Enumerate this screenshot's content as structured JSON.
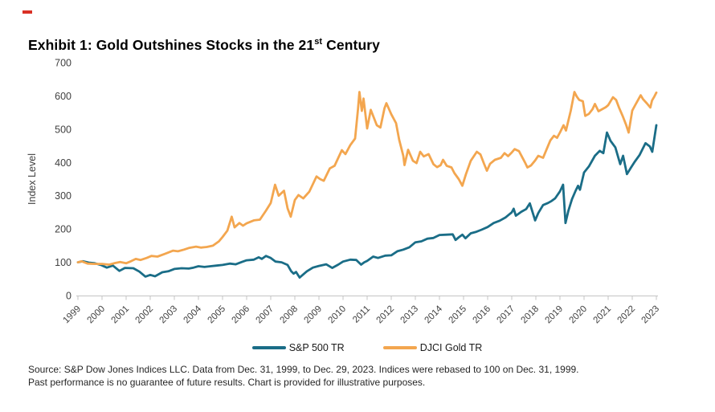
{
  "decor": {
    "red_mark_color": "#d93025"
  },
  "title": {
    "prefix": "Exhibit 1: Gold Outshines Stocks in the 21",
    "superscript": "st",
    "suffix": " Century"
  },
  "legend": {
    "items": [
      {
        "label": "S&P 500 TR",
        "color": "#1a6d87"
      },
      {
        "label": "DJCI Gold TR",
        "color": "#f3a64f"
      }
    ]
  },
  "footer": {
    "line1": "Source: S&P Dow Jones Indices LLC. Data from Dec. 31, 1999, to Dec. 29, 2023. Indices were rebased to 100 on Dec. 31, 1999.",
    "line2": "Past performance is no guarantee of future results. Chart is provided for illustrative purposes."
  },
  "chart_data": {
    "type": "line",
    "title": "Exhibit 1: Gold Outshines Stocks in the 21st Century",
    "ylabel": "Index Level",
    "xlabel": "",
    "ylim": [
      0,
      700
    ],
    "yticks": [
      0,
      100,
      200,
      300,
      400,
      500,
      600,
      700
    ],
    "xtick_labels": [
      "1999",
      "2000",
      "2001",
      "2002",
      "2003",
      "2004",
      "2005",
      "2006",
      "2007",
      "2008",
      "2009",
      "2010",
      "2011",
      "2012",
      "2013",
      "2014",
      "2015",
      "2016",
      "2017",
      "2018",
      "2019",
      "2020",
      "2021",
      "2022",
      "2023"
    ],
    "x_axis_note": "x values are calendar-decimal years; 2000.0 = Dec. 31, 1999 (tick '1999'), 2024.0 = Dec. 29, 2023 (tick '2023')",
    "x_range": [
      2000.0,
      2024.0
    ],
    "grid": false,
    "legend_position": "bottom",
    "axis_color": "#c4c4c4",
    "tick_text_color": "#404040",
    "series": [
      {
        "name": "S&P 500 TR",
        "color": "#1a6d87",
        "points": [
          [
            2000.0,
            100
          ],
          [
            2000.2,
            103
          ],
          [
            2000.45,
            99
          ],
          [
            2000.7,
            97
          ],
          [
            2000.95,
            92
          ],
          [
            2001.2,
            84
          ],
          [
            2001.45,
            90
          ],
          [
            2001.72,
            74
          ],
          [
            2001.95,
            83
          ],
          [
            2002.3,
            82
          ],
          [
            2002.55,
            72
          ],
          [
            2002.8,
            57
          ],
          [
            2003.0,
            62
          ],
          [
            2003.2,
            58
          ],
          [
            2003.5,
            70
          ],
          [
            2003.75,
            73
          ],
          [
            2004.0,
            80
          ],
          [
            2004.3,
            82
          ],
          [
            2004.6,
            81
          ],
          [
            2004.8,
            84
          ],
          [
            2005.0,
            88
          ],
          [
            2005.25,
            86
          ],
          [
            2005.5,
            88
          ],
          [
            2005.75,
            90
          ],
          [
            2006.0,
            92
          ],
          [
            2006.3,
            96
          ],
          [
            2006.55,
            94
          ],
          [
            2006.8,
            101
          ],
          [
            2007.0,
            106
          ],
          [
            2007.3,
            108
          ],
          [
            2007.5,
            115
          ],
          [
            2007.63,
            110
          ],
          [
            2007.8,
            119
          ],
          [
            2008.0,
            113
          ],
          [
            2008.2,
            102
          ],
          [
            2008.45,
            100
          ],
          [
            2008.7,
            92
          ],
          [
            2008.85,
            73
          ],
          [
            2008.95,
            66
          ],
          [
            2009.05,
            71
          ],
          [
            2009.2,
            54
          ],
          [
            2009.5,
            73
          ],
          [
            2009.75,
            84
          ],
          [
            2010.0,
            89
          ],
          [
            2010.3,
            94
          ],
          [
            2010.55,
            83
          ],
          [
            2010.8,
            93
          ],
          [
            2011.0,
            102
          ],
          [
            2011.3,
            108
          ],
          [
            2011.55,
            107
          ],
          [
            2011.75,
            93
          ],
          [
            2011.88,
            100
          ],
          [
            2012.0,
            104
          ],
          [
            2012.25,
            117
          ],
          [
            2012.45,
            113
          ],
          [
            2012.75,
            120
          ],
          [
            2013.0,
            121
          ],
          [
            2013.25,
            133
          ],
          [
            2013.5,
            138
          ],
          [
            2013.75,
            145
          ],
          [
            2014.0,
            160
          ],
          [
            2014.25,
            163
          ],
          [
            2014.5,
            171
          ],
          [
            2014.75,
            173
          ],
          [
            2015.0,
            182
          ],
          [
            2015.3,
            183
          ],
          [
            2015.55,
            184
          ],
          [
            2015.67,
            167
          ],
          [
            2015.8,
            175
          ],
          [
            2015.95,
            183
          ],
          [
            2016.08,
            172
          ],
          [
            2016.3,
            187
          ],
          [
            2016.5,
            191
          ],
          [
            2016.75,
            198
          ],
          [
            2017.0,
            206
          ],
          [
            2017.25,
            218
          ],
          [
            2017.5,
            225
          ],
          [
            2017.75,
            235
          ],
          [
            2018.0,
            250
          ],
          [
            2018.08,
            261
          ],
          [
            2018.17,
            240
          ],
          [
            2018.4,
            252
          ],
          [
            2018.6,
            260
          ],
          [
            2018.75,
            277
          ],
          [
            2018.97,
            226
          ],
          [
            2019.1,
            248
          ],
          [
            2019.3,
            272
          ],
          [
            2019.5,
            278
          ],
          [
            2019.65,
            284
          ],
          [
            2019.8,
            292
          ],
          [
            2020.0,
            313
          ],
          [
            2020.13,
            333
          ],
          [
            2020.23,
            218
          ],
          [
            2020.35,
            255
          ],
          [
            2020.5,
            290
          ],
          [
            2020.65,
            315
          ],
          [
            2020.75,
            330
          ],
          [
            2020.83,
            318
          ],
          [
            2021.0,
            370
          ],
          [
            2021.2,
            388
          ],
          [
            2021.45,
            420
          ],
          [
            2021.65,
            435
          ],
          [
            2021.8,
            428
          ],
          [
            2021.95,
            490
          ],
          [
            2022.1,
            465
          ],
          [
            2022.3,
            445
          ],
          [
            2022.5,
            395
          ],
          [
            2022.62,
            420
          ],
          [
            2022.78,
            365
          ],
          [
            2022.95,
            385
          ],
          [
            2023.1,
            402
          ],
          [
            2023.3,
            422
          ],
          [
            2023.55,
            458
          ],
          [
            2023.73,
            448
          ],
          [
            2023.83,
            432
          ],
          [
            2024.0,
            512
          ]
        ]
      },
      {
        "name": "DJCI Gold TR",
        "color": "#f3a64f",
        "points": [
          [
            2000.0,
            100
          ],
          [
            2000.15,
            103
          ],
          [
            2000.4,
            96
          ],
          [
            2000.7,
            95
          ],
          [
            2001.0,
            95
          ],
          [
            2001.3,
            93
          ],
          [
            2001.5,
            97
          ],
          [
            2001.75,
            101
          ],
          [
            2002.0,
            97
          ],
          [
            2002.2,
            103
          ],
          [
            2002.4,
            110
          ],
          [
            2002.6,
            107
          ],
          [
            2002.85,
            113
          ],
          [
            2003.05,
            119
          ],
          [
            2003.3,
            117
          ],
          [
            2003.6,
            125
          ],
          [
            2003.95,
            135
          ],
          [
            2004.15,
            133
          ],
          [
            2004.4,
            138
          ],
          [
            2004.6,
            143
          ],
          [
            2004.9,
            147
          ],
          [
            2005.1,
            144
          ],
          [
            2005.35,
            146
          ],
          [
            2005.6,
            150
          ],
          [
            2005.85,
            163
          ],
          [
            2006.0,
            176
          ],
          [
            2006.2,
            195
          ],
          [
            2006.38,
            237
          ],
          [
            2006.5,
            205
          ],
          [
            2006.7,
            218
          ],
          [
            2006.85,
            210
          ],
          [
            2007.0,
            217
          ],
          [
            2007.3,
            226
          ],
          [
            2007.55,
            228
          ],
          [
            2007.8,
            255
          ],
          [
            2008.0,
            278
          ],
          [
            2008.18,
            333
          ],
          [
            2008.33,
            300
          ],
          [
            2008.55,
            315
          ],
          [
            2008.7,
            262
          ],
          [
            2008.83,
            237
          ],
          [
            2009.0,
            287
          ],
          [
            2009.15,
            302
          ],
          [
            2009.35,
            292
          ],
          [
            2009.6,
            312
          ],
          [
            2009.9,
            358
          ],
          [
            2010.05,
            350
          ],
          [
            2010.2,
            345
          ],
          [
            2010.45,
            382
          ],
          [
            2010.65,
            390
          ],
          [
            2010.95,
            437
          ],
          [
            2011.1,
            425
          ],
          [
            2011.3,
            452
          ],
          [
            2011.5,
            472
          ],
          [
            2011.62,
            560
          ],
          [
            2011.68,
            612
          ],
          [
            2011.78,
            555
          ],
          [
            2011.85,
            592
          ],
          [
            2012.0,
            502
          ],
          [
            2012.15,
            558
          ],
          [
            2012.4,
            512
          ],
          [
            2012.55,
            505
          ],
          [
            2012.72,
            563
          ],
          [
            2012.8,
            578
          ],
          [
            2013.0,
            545
          ],
          [
            2013.2,
            518
          ],
          [
            2013.33,
            468
          ],
          [
            2013.5,
            420
          ],
          [
            2013.55,
            392
          ],
          [
            2013.7,
            438
          ],
          [
            2013.9,
            405
          ],
          [
            2014.05,
            398
          ],
          [
            2014.2,
            432
          ],
          [
            2014.35,
            418
          ],
          [
            2014.55,
            425
          ],
          [
            2014.75,
            395
          ],
          [
            2014.9,
            386
          ],
          [
            2015.05,
            392
          ],
          [
            2015.15,
            408
          ],
          [
            2015.3,
            390
          ],
          [
            2015.5,
            385
          ],
          [
            2015.62,
            368
          ],
          [
            2015.8,
            350
          ],
          [
            2015.95,
            330
          ],
          [
            2016.1,
            365
          ],
          [
            2016.3,
            405
          ],
          [
            2016.55,
            432
          ],
          [
            2016.7,
            424
          ],
          [
            2016.85,
            396
          ],
          [
            2016.97,
            375
          ],
          [
            2017.1,
            396
          ],
          [
            2017.3,
            408
          ],
          [
            2017.55,
            414
          ],
          [
            2017.7,
            428
          ],
          [
            2017.85,
            419
          ],
          [
            2018.0,
            430
          ],
          [
            2018.12,
            440
          ],
          [
            2018.3,
            434
          ],
          [
            2018.55,
            400
          ],
          [
            2018.65,
            385
          ],
          [
            2018.8,
            391
          ],
          [
            2018.97,
            406
          ],
          [
            2019.1,
            420
          ],
          [
            2019.3,
            414
          ],
          [
            2019.45,
            440
          ],
          [
            2019.6,
            466
          ],
          [
            2019.75,
            480
          ],
          [
            2019.88,
            474
          ],
          [
            2020.0,
            490
          ],
          [
            2020.15,
            512
          ],
          [
            2020.25,
            496
          ],
          [
            2020.45,
            556
          ],
          [
            2020.6,
            612
          ],
          [
            2020.7,
            598
          ],
          [
            2020.8,
            588
          ],
          [
            2020.95,
            584
          ],
          [
            2021.05,
            540
          ],
          [
            2021.2,
            546
          ],
          [
            2021.35,
            560
          ],
          [
            2021.45,
            576
          ],
          [
            2021.6,
            554
          ],
          [
            2021.75,
            560
          ],
          [
            2021.9,
            566
          ],
          [
            2022.0,
            572
          ],
          [
            2022.2,
            596
          ],
          [
            2022.33,
            588
          ],
          [
            2022.45,
            565
          ],
          [
            2022.6,
            540
          ],
          [
            2022.75,
            512
          ],
          [
            2022.85,
            490
          ],
          [
            2023.0,
            556
          ],
          [
            2023.12,
            572
          ],
          [
            2023.35,
            602
          ],
          [
            2023.45,
            590
          ],
          [
            2023.6,
            578
          ],
          [
            2023.75,
            565
          ],
          [
            2023.82,
            586
          ],
          [
            2023.9,
            596
          ],
          [
            2024.0,
            610
          ]
        ]
      }
    ]
  }
}
